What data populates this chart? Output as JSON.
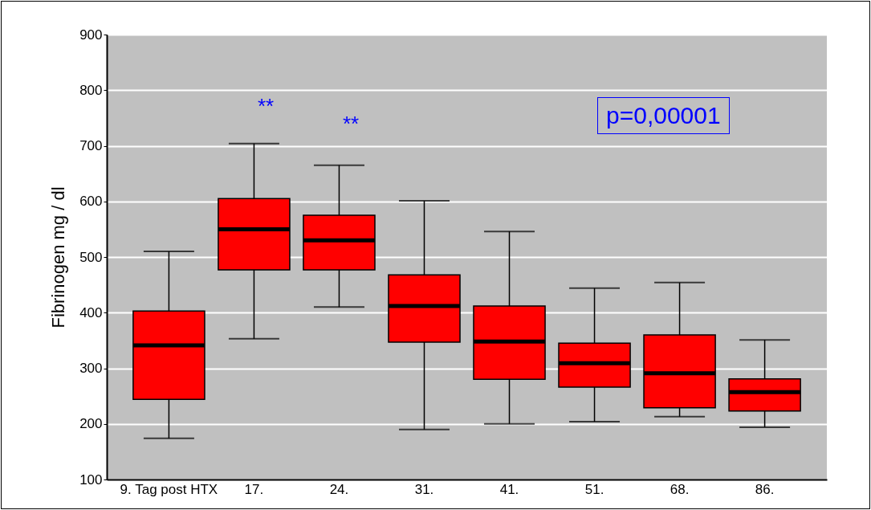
{
  "chart_data": {
    "type": "box",
    "ylabel": "Fibrinogen  mg / dl",
    "categories": [
      "9. Tag post HTX",
      "17.",
      "24.",
      "31.",
      "41.",
      "51.",
      "68.",
      "86."
    ],
    "series": [
      {
        "color": "#ff0000",
        "boxes": [
          {
            "low": 174,
            "q1": 244,
            "median": 341,
            "q3": 403,
            "high": 510
          },
          {
            "low": 353,
            "q1": 477,
            "median": 550,
            "q3": 605,
            "high": 704
          },
          {
            "low": 410,
            "q1": 477,
            "median": 530,
            "q3": 575,
            "high": 665
          },
          {
            "low": 190,
            "q1": 347,
            "median": 412,
            "q3": 468,
            "high": 601
          },
          {
            "low": 200,
            "q1": 280,
            "median": 348,
            "q3": 412,
            "high": 546
          },
          {
            "low": 204,
            "q1": 266,
            "median": 309,
            "q3": 345,
            "high": 444
          },
          {
            "low": 213,
            "q1": 229,
            "median": 291,
            "q3": 360,
            "high": 454
          },
          {
            "low": 194,
            "q1": 223,
            "median": 257,
            "q3": 281,
            "high": 351
          }
        ]
      }
    ],
    "ylim": [
      100,
      900
    ],
    "yticks": [
      100,
      200,
      300,
      400,
      500,
      600,
      700,
      800,
      900
    ],
    "grid": "y",
    "annotations": [
      "**",
      "**",
      "p=0,00001"
    ]
  }
}
